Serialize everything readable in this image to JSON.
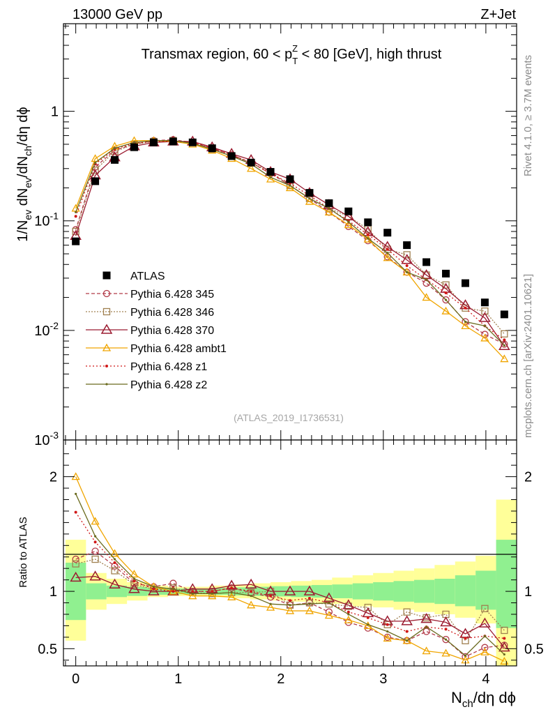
{
  "header": {
    "left": "13000 GeV pp",
    "right": "Z+Jet"
  },
  "side_texts": {
    "rivet": "Rivet 4.1.0, ≥ 3.7M events",
    "mcplots": "mcplots.cern.ch [arXiv:2401.10621]"
  },
  "chart_data": {
    "type": "scatter",
    "title": "Transmax region, 60 < pT Z < 80 [GeV], high thrust",
    "title_parts": {
      "prefix": "Transmax region, 60 < p",
      "sub": "T",
      "sup": "Z",
      "suffix": " < 80 [GeV], high thrust"
    },
    "watermark": "(ATLAS_2019_I1736531)",
    "xlabel": {
      "main": "N",
      "sub": "ch",
      "rest": "/dη dϕ"
    },
    "ylabel": {
      "p1": "1/N",
      "s1": "ev",
      "p2": " dN",
      "s2": "ev",
      "p3": "/dN",
      "s3": "ch",
      "p4": "/dη dϕ"
    },
    "ratio_ylabel": "Ratio to ATLAS",
    "xlim": [
      -0.12,
      4.3
    ],
    "ylim": [
      0.001,
      6.3
    ],
    "ratio_ylim": [
      0.35,
      2.32
    ],
    "yscale": "log",
    "x_ticks": [
      "0",
      "1",
      "2",
      "3",
      "4"
    ],
    "y_ticks": [
      {
        "base": "10",
        "exp": "-3",
        "v": 0.001
      },
      {
        "base": "10",
        "exp": "-2",
        "v": 0.01
      },
      {
        "base": "10",
        "exp": "-1",
        "v": 0.1
      },
      {
        "base": "1",
        "exp": "",
        "v": 1
      }
    ],
    "ratio_ticks": [
      "0.5",
      "1",
      "2"
    ],
    "x": [
      0,
      0.19,
      0.38,
      0.57,
      0.76,
      0.95,
      1.14,
      1.33,
      1.52,
      1.71,
      1.9,
      2.09,
      2.28,
      2.47,
      2.66,
      2.85,
      3.04,
      3.23,
      3.42,
      3.61,
      3.8,
      3.99,
      4.18
    ],
    "data": {
      "name": "ATLAS",
      "values": [
        0.065,
        0.23,
        0.36,
        0.47,
        0.52,
        0.53,
        0.52,
        0.46,
        0.39,
        0.34,
        0.28,
        0.24,
        0.18,
        0.145,
        0.122,
        0.097,
        0.078,
        0.06,
        0.042,
        0.033,
        0.027,
        0.018,
        0.014
      ]
    },
    "band_bins": [
      {
        "lo": -0.1,
        "hi": 0.1,
        "g": [
          0.75,
          1.25
        ],
        "y": [
          0.57,
          1.45
        ]
      },
      {
        "lo": 0.1,
        "hi": 0.3,
        "g": [
          0.93,
          1.07
        ],
        "y": [
          0.84,
          1.16
        ]
      },
      {
        "lo": 0.3,
        "hi": 0.5,
        "g": [
          0.95,
          1.05
        ],
        "y": [
          0.89,
          1.11
        ]
      },
      {
        "lo": 0.5,
        "hi": 0.7,
        "g": [
          0.96,
          1.04
        ],
        "y": [
          0.92,
          1.08
        ]
      },
      {
        "lo": 0.7,
        "hi": 0.9,
        "g": [
          0.97,
          1.03
        ],
        "y": [
          0.95,
          1.05
        ]
      },
      {
        "lo": 0.9,
        "hi": 1.1,
        "g": [
          0.975,
          1.025
        ],
        "y": [
          0.96,
          1.04
        ]
      },
      {
        "lo": 1.1,
        "hi": 1.3,
        "g": [
          0.975,
          1.025
        ],
        "y": [
          0.96,
          1.04
        ]
      },
      {
        "lo": 1.3,
        "hi": 1.5,
        "g": [
          0.97,
          1.03
        ],
        "y": [
          0.95,
          1.05
        ]
      },
      {
        "lo": 1.5,
        "hi": 1.7,
        "g": [
          0.965,
          1.035
        ],
        "y": [
          0.94,
          1.06
        ]
      },
      {
        "lo": 1.7,
        "hi": 1.9,
        "g": [
          0.96,
          1.04
        ],
        "y": [
          0.93,
          1.07
        ]
      },
      {
        "lo": 1.9,
        "hi": 2.1,
        "g": [
          0.955,
          1.045
        ],
        "y": [
          0.92,
          1.08
        ]
      },
      {
        "lo": 2.1,
        "hi": 2.3,
        "g": [
          0.95,
          1.05
        ],
        "y": [
          0.91,
          1.09
        ]
      },
      {
        "lo": 2.3,
        "hi": 2.5,
        "g": [
          0.945,
          1.055
        ],
        "y": [
          0.9,
          1.1
        ]
      },
      {
        "lo": 2.5,
        "hi": 2.7,
        "g": [
          0.94,
          1.06
        ],
        "y": [
          0.89,
          1.12
        ]
      },
      {
        "lo": 2.7,
        "hi": 2.9,
        "g": [
          0.93,
          1.07
        ],
        "y": [
          0.87,
          1.14
        ]
      },
      {
        "lo": 2.9,
        "hi": 3.1,
        "g": [
          0.92,
          1.08
        ],
        "y": [
          0.86,
          1.16
        ]
      },
      {
        "lo": 3.1,
        "hi": 3.3,
        "g": [
          0.91,
          1.09
        ],
        "y": [
          0.84,
          1.18
        ]
      },
      {
        "lo": 3.3,
        "hi": 3.5,
        "g": [
          0.9,
          1.1
        ],
        "y": [
          0.82,
          1.2
        ]
      },
      {
        "lo": 3.5,
        "hi": 3.7,
        "g": [
          0.89,
          1.11
        ],
        "y": [
          0.8,
          1.23
        ]
      },
      {
        "lo": 3.7,
        "hi": 3.9,
        "g": [
          0.87,
          1.14
        ],
        "y": [
          0.77,
          1.26
        ]
      },
      {
        "lo": 3.9,
        "hi": 4.1,
        "g": [
          0.84,
          1.18
        ],
        "y": [
          0.72,
          1.31
        ]
      },
      {
        "lo": 4.1,
        "hi": 4.3,
        "g": [
          0.68,
          1.45
        ],
        "y": [
          0.35,
          1.8
        ]
      }
    ],
    "series": [
      {
        "name": "Pythia 6.428 345",
        "color": "#b23a48",
        "dash": "5,3",
        "marker": "circle",
        "values": [
          0.083,
          0.31,
          0.44,
          0.5,
          0.54,
          0.55,
          0.52,
          0.46,
          0.4,
          0.34,
          0.27,
          0.21,
          0.16,
          0.12,
          0.089,
          0.066,
          0.047,
          0.034,
          0.027,
          0.019,
          0.012,
          0.0092,
          0.0075
        ],
        "ratio": [
          1.28,
          1.35,
          1.22,
          1.07,
          1.04,
          1.07,
          1.0,
          1.0,
          1.03,
          0.99,
          0.95,
          0.88,
          0.9,
          0.82,
          0.73,
          0.68,
          0.6,
          0.57,
          0.65,
          0.58,
          0.43,
          0.51,
          0.53
        ]
      },
      {
        "name": "Pythia 6.428 346",
        "color": "#a08050",
        "dash": "2,2",
        "marker": "square",
        "values": [
          0.08,
          0.29,
          0.43,
          0.5,
          0.53,
          0.54,
          0.52,
          0.45,
          0.39,
          0.34,
          0.28,
          0.21,
          0.16,
          0.13,
          0.11,
          0.084,
          0.055,
          0.049,
          0.032,
          0.026,
          0.016,
          0.015,
          0.0093
        ],
        "ratio": [
          1.24,
          1.28,
          1.18,
          1.06,
          1.02,
          1.03,
          0.99,
          0.98,
          0.99,
          0.99,
          1.0,
          0.88,
          0.9,
          0.89,
          0.87,
          0.86,
          0.71,
          0.82,
          0.77,
          0.8,
          0.57,
          0.85,
          0.66
        ]
      },
      {
        "name": "Pythia 6.428 370",
        "color": "#9b1b30",
        "dash": "",
        "marker": "triangle",
        "values": [
          0.073,
          0.26,
          0.38,
          0.48,
          0.52,
          0.53,
          0.53,
          0.47,
          0.41,
          0.36,
          0.28,
          0.24,
          0.18,
          0.14,
          0.11,
          0.079,
          0.058,
          0.044,
          0.032,
          0.024,
          0.017,
          0.013,
          0.0072
        ],
        "ratio": [
          1.12,
          1.13,
          1.06,
          1.02,
          1.0,
          1.0,
          1.02,
          1.02,
          1.05,
          1.06,
          1.0,
          1.0,
          1.0,
          0.94,
          0.88,
          0.81,
          0.74,
          0.74,
          0.76,
          0.73,
          0.63,
          0.72,
          0.51
        ]
      },
      {
        "name": "Pythia 6.428 ambt1",
        "color": "#f0a500",
        "dash": "",
        "marker": "triangle-small",
        "values": [
          0.13,
          0.37,
          0.48,
          0.54,
          0.54,
          0.53,
          0.5,
          0.44,
          0.37,
          0.3,
          0.24,
          0.2,
          0.15,
          0.12,
          0.092,
          0.068,
          0.046,
          0.034,
          0.02,
          0.015,
          0.011,
          0.0085,
          0.0055
        ],
        "ratio": [
          2.0,
          1.61,
          1.33,
          1.15,
          1.04,
          1.0,
          0.96,
          0.96,
          0.95,
          0.88,
          0.86,
          0.83,
          0.83,
          0.79,
          0.75,
          0.7,
          0.59,
          0.57,
          0.48,
          0.46,
          0.4,
          0.47,
          0.39
        ]
      },
      {
        "name": "Pythia 6.428 z1",
        "color": "#d01818",
        "dash": "2,3",
        "marker": "dot",
        "values": [
          0.11,
          0.33,
          0.45,
          0.51,
          0.53,
          0.53,
          0.52,
          0.46,
          0.4,
          0.34,
          0.27,
          0.22,
          0.17,
          0.13,
          0.1,
          0.075,
          0.055,
          0.039,
          0.029,
          0.022,
          0.016,
          0.011,
          0.0082
        ],
        "ratio": [
          1.69,
          1.43,
          1.25,
          1.09,
          1.02,
          1.0,
          1.0,
          1.0,
          1.03,
          1.0,
          0.96,
          0.92,
          0.94,
          0.9,
          0.82,
          0.77,
          0.71,
          0.65,
          0.69,
          0.67,
          0.59,
          0.61,
          0.59
        ]
      },
      {
        "name": "Pythia 6.428 z2",
        "color": "#6b6b1f",
        "dash": "",
        "marker": "dot-small",
        "values": [
          0.12,
          0.34,
          0.46,
          0.52,
          0.54,
          0.54,
          0.51,
          0.45,
          0.39,
          0.33,
          0.25,
          0.21,
          0.16,
          0.13,
          0.098,
          0.069,
          0.051,
          0.034,
          0.029,
          0.019,
          0.012,
          0.011,
          0.0073
        ],
        "ratio": [
          1.85,
          1.48,
          1.28,
          1.11,
          1.04,
          1.02,
          0.98,
          0.98,
          0.99,
          0.96,
          0.89,
          0.88,
          0.89,
          0.9,
          0.8,
          0.71,
          0.65,
          0.57,
          0.69,
          0.58,
          0.44,
          0.61,
          0.45
        ]
      }
    ]
  }
}
